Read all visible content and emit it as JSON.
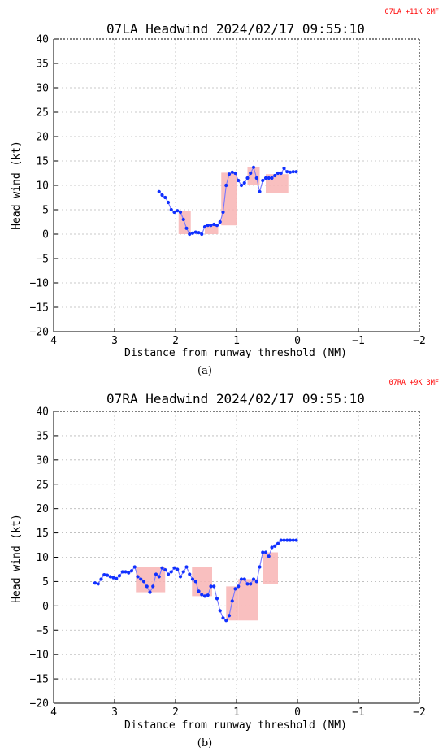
{
  "chart_data": [
    {
      "type": "line",
      "title": "07LA Headwind 2024/02/17 09:55:10",
      "tag": "07LA +11K 2MF",
      "panel_label": "(a)",
      "xlabel": "Distance from runway threshold (NM)",
      "ylabel": "Head wind (kt)",
      "xlim": [
        4,
        -2
      ],
      "ylim": [
        -20,
        40
      ],
      "xticks": [
        4,
        3,
        2,
        1,
        0,
        -1,
        -2
      ],
      "xtick_labels": [
        "4",
        "3",
        "2",
        "1",
        "0",
        "−1",
        "−2"
      ],
      "yticks": [
        -20,
        -15,
        -10,
        -5,
        0,
        5,
        10,
        15,
        20,
        25,
        30,
        35,
        40
      ],
      "grid": true,
      "line_color": "#7777ff",
      "marker_color": "#1030ff",
      "box_color": "#f8b4b4",
      "series": [
        {
          "x": [
            2.27,
            2.22,
            2.17,
            2.12,
            2.07,
            2.02,
            1.97,
            1.92,
            1.87,
            1.82,
            1.77,
            1.72,
            1.67,
            1.62,
            1.57,
            1.52,
            1.47,
            1.42,
            1.37,
            1.32,
            1.27,
            1.22,
            1.17,
            1.12,
            1.07,
            1.02,
            0.97,
            0.92,
            0.87,
            0.82,
            0.77,
            0.72,
            0.67,
            0.62,
            0.57,
            0.52,
            0.47,
            0.42,
            0.37,
            0.32,
            0.27,
            0.22,
            0.17,
            0.12,
            0.07,
            0.02
          ],
          "y": [
            8.7,
            8.0,
            7.5,
            6.5,
            5.0,
            4.5,
            4.8,
            4.5,
            3.0,
            1.2,
            0.0,
            0.2,
            0.4,
            0.3,
            0.0,
            1.5,
            1.8,
            1.8,
            2.0,
            1.8,
            2.5,
            4.5,
            10.0,
            12.3,
            12.7,
            12.5,
            11.0,
            10.0,
            10.5,
            11.5,
            12.5,
            13.7,
            11.5,
            8.7,
            11.0,
            11.5,
            11.5,
            11.5,
            12.0,
            12.5,
            12.5,
            13.5,
            12.8,
            12.7,
            12.8,
            12.8
          ]
        }
      ],
      "boxes": [
        {
          "x0": 1.95,
          "x1": 1.75,
          "y0": 0.0,
          "y1": 4.8
        },
        {
          "x0": 1.52,
          "x1": 1.3,
          "y0": 0.0,
          "y1": 1.8
        },
        {
          "x0": 1.25,
          "x1": 1.0,
          "y0": 1.8,
          "y1": 12.6
        },
        {
          "x0": 0.82,
          "x1": 0.62,
          "y0": 10.0,
          "y1": 13.7
        },
        {
          "x0": 0.52,
          "x1": 0.15,
          "y0": 8.5,
          "y1": 12.3
        }
      ]
    },
    {
      "type": "line",
      "title": "07RA Headwind 2024/02/17 09:55:10",
      "tag": "07RA +9K 3MF",
      "panel_label": "(b)",
      "xlabel": "Distance from runway threshold (NM)",
      "ylabel": "Head wind (kt)",
      "xlim": [
        4,
        -2
      ],
      "ylim": [
        -20,
        40
      ],
      "xticks": [
        4,
        3,
        2,
        1,
        0,
        -1,
        -2
      ],
      "xtick_labels": [
        "4",
        "3",
        "2",
        "1",
        "0",
        "−1",
        "−2"
      ],
      "yticks": [
        -20,
        -15,
        -10,
        -5,
        0,
        5,
        10,
        15,
        20,
        25,
        30,
        35,
        40
      ],
      "grid": true,
      "line_color": "#7777ff",
      "marker_color": "#1030ff",
      "box_color": "#f8b4b4",
      "series": [
        {
          "x": [
            3.32,
            3.27,
            3.22,
            3.17,
            3.12,
            3.07,
            3.02,
            2.97,
            2.92,
            2.87,
            2.82,
            2.77,
            2.72,
            2.67,
            2.62,
            2.57,
            2.52,
            2.47,
            2.42,
            2.37,
            2.32,
            2.27,
            2.22,
            2.17,
            2.12,
            2.07,
            2.02,
            1.97,
            1.92,
            1.87,
            1.82,
            1.77,
            1.72,
            1.67,
            1.62,
            1.57,
            1.52,
            1.47,
            1.42,
            1.37,
            1.32,
            1.27,
            1.22,
            1.17,
            1.12,
            1.07,
            1.02,
            0.97,
            0.92,
            0.87,
            0.82,
            0.77,
            0.72,
            0.67,
            0.62,
            0.57,
            0.52,
            0.47,
            0.42,
            0.37,
            0.32,
            0.27,
            0.22,
            0.17,
            0.12,
            0.07,
            0.02
          ],
          "y": [
            4.7,
            4.5,
            5.5,
            6.4,
            6.3,
            6.0,
            5.8,
            5.6,
            6.2,
            7.0,
            7.0,
            6.8,
            7.2,
            8.0,
            6.0,
            5.5,
            5.0,
            4.0,
            2.8,
            4.0,
            6.5,
            6.0,
            7.8,
            7.4,
            6.5,
            7.0,
            7.8,
            7.5,
            6.0,
            7.0,
            8.0,
            6.5,
            5.5,
            5.0,
            3.0,
            2.3,
            2.0,
            2.2,
            4.0,
            4.0,
            1.5,
            -1.0,
            -2.5,
            -3.0,
            -2.0,
            1.0,
            3.5,
            4.0,
            5.5,
            5.5,
            4.5,
            4.5,
            5.5,
            5.0,
            8.0,
            11.0,
            11.0,
            10.2,
            12.0,
            12.3,
            12.8,
            13.5,
            13.5,
            13.5,
            13.5,
            13.5,
            13.5
          ]
        }
      ],
      "boxes": [
        {
          "x0": 2.65,
          "x1": 2.17,
          "y0": 2.8,
          "y1": 8.0
        },
        {
          "x0": 1.73,
          "x1": 1.4,
          "y0": 2.0,
          "y1": 8.0
        },
        {
          "x0": 1.17,
          "x1": 0.97,
          "y0": -3.0,
          "y1": 4.0
        },
        {
          "x0": 0.97,
          "x1": 0.65,
          "y0": -3.0,
          "y1": 5.5
        },
        {
          "x0": 0.57,
          "x1": 0.32,
          "y0": 4.5,
          "y1": 11.0
        }
      ]
    }
  ]
}
